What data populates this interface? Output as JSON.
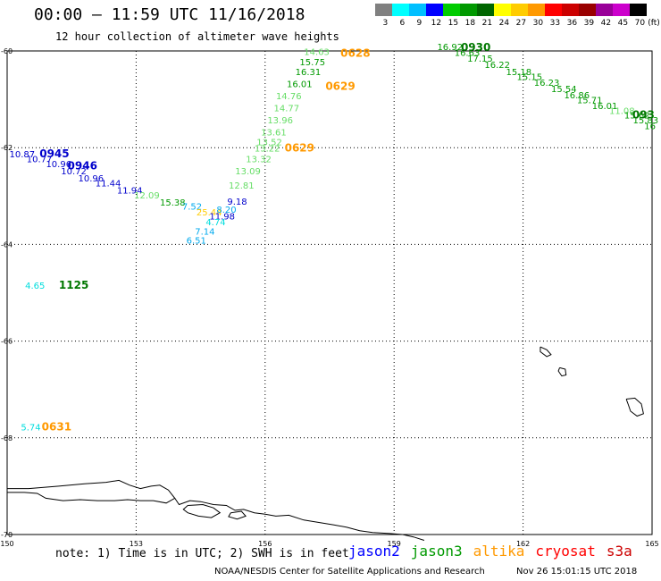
{
  "title": "00:00 – 11:59 UTC 11/16/2018",
  "subtitle": "12 hour collection of altimeter wave heights",
  "scale": {
    "unit": "(ft)",
    "colors": [
      "#808080",
      "#00ffff",
      "#00bfff",
      "#0000ff",
      "#00cc00",
      "#009900",
      "#006600",
      "#ffff00",
      "#ffcc00",
      "#ff9900",
      "#ff0000",
      "#cc0000",
      "#990000",
      "#990099",
      "#cc00cc",
      "#000000"
    ],
    "labels": [
      "3",
      "6",
      "9",
      "12",
      "15",
      "18",
      "21",
      "24",
      "27",
      "30",
      "33",
      "36",
      "39",
      "42",
      "45",
      "70"
    ]
  },
  "map": {
    "lon_range": [
      150,
      165
    ],
    "lat_range": [
      -70,
      -60
    ],
    "lon_ticks": [
      "150",
      "153",
      "156",
      "159",
      "162",
      "165"
    ],
    "lat_ticks": [
      "-60",
      "-62",
      "-64",
      "-66",
      "-68",
      "-70"
    ],
    "grid": true
  },
  "observations": [
    {
      "lon": 150.35,
      "lat": -62.2,
      "v": "10.87",
      "c": "#0000cc"
    },
    {
      "lon": 150.75,
      "lat": -62.3,
      "v": "10.77",
      "c": "#0000cc"
    },
    {
      "lon": 151.2,
      "lat": -62.4,
      "v": "10.96",
      "c": "#0000cc"
    },
    {
      "lon": 151.55,
      "lat": -62.55,
      "v": "10.72",
      "c": "#0000cc"
    },
    {
      "lon": 151.95,
      "lat": -62.7,
      "v": "10.96",
      "c": "#0000cc"
    },
    {
      "lon": 152.35,
      "lat": -62.8,
      "v": "11.44",
      "c": "#0000cc"
    },
    {
      "lon": 152.85,
      "lat": -62.95,
      "v": "11.94",
      "c": "#0000cc"
    },
    {
      "lon": 153.25,
      "lat": -63.05,
      "v": "12.09",
      "c": "#66dd66"
    },
    {
      "lon": 153.85,
      "lat": -63.2,
      "v": "15.38",
      "c": "#009900"
    },
    {
      "lon": 154.3,
      "lat": -63.28,
      "v": "7.52",
      "c": "#00aaee"
    },
    {
      "lon": 154.7,
      "lat": -63.4,
      "v": "25.44",
      "c": "#ffcc00"
    },
    {
      "lon": 155.1,
      "lat": -63.35,
      "v": "8.20",
      "c": "#00aaee"
    },
    {
      "lon": 155.35,
      "lat": -63.18,
      "v": "9.18",
      "c": "#0000cc"
    },
    {
      "lon": 155.0,
      "lat": -63.48,
      "v": "11.98",
      "c": "#0000cc"
    },
    {
      "lon": 154.85,
      "lat": -63.6,
      "v": "4.74",
      "c": "#00dddd"
    },
    {
      "lon": 154.6,
      "lat": -63.8,
      "v": "7.14",
      "c": "#00aaee"
    },
    {
      "lon": 154.4,
      "lat": -63.98,
      "v": "6.51",
      "c": "#00aaee"
    },
    {
      "lon": 155.45,
      "lat": -62.85,
      "v": "12.81",
      "c": "#66dd66"
    },
    {
      "lon": 155.6,
      "lat": -62.55,
      "v": "13.09",
      "c": "#66dd66"
    },
    {
      "lon": 155.85,
      "lat": -62.3,
      "v": "13.32",
      "c": "#66dd66"
    },
    {
      "lon": 156.05,
      "lat": -62.08,
      "v": "13.22",
      "c": "#66dd66"
    },
    {
      "lon": 156.1,
      "lat": -61.95,
      "v": "13.52",
      "c": "#66dd66"
    },
    {
      "lon": 156.2,
      "lat": -61.75,
      "v": "13.61",
      "c": "#66dd66"
    },
    {
      "lon": 156.35,
      "lat": -61.5,
      "v": "13.96",
      "c": "#66dd66"
    },
    {
      "lon": 156.5,
      "lat": -61.25,
      "v": "14.77",
      "c": "#66dd66"
    },
    {
      "lon": 156.55,
      "lat": -61.0,
      "v": "14.76",
      "c": "#66dd66"
    },
    {
      "lon": 156.8,
      "lat": -60.75,
      "v": "16.01",
      "c": "#009900"
    },
    {
      "lon": 157.0,
      "lat": -60.5,
      "v": "16.31",
      "c": "#009900"
    },
    {
      "lon": 157.1,
      "lat": -60.3,
      "v": "15.75",
      "c": "#009900"
    },
    {
      "lon": 157.2,
      "lat": -60.08,
      "v": "14.63",
      "c": "#66dd66"
    },
    {
      "lon": 160.3,
      "lat": -59.98,
      "v": "16.92",
      "c": "#009900"
    },
    {
      "lon": 160.7,
      "lat": -60.1,
      "v": "16.63",
      "c": "#009900"
    },
    {
      "lon": 161.0,
      "lat": -60.22,
      "v": "17.15",
      "c": "#009900"
    },
    {
      "lon": 161.4,
      "lat": -60.35,
      "v": "16.22",
      "c": "#009900"
    },
    {
      "lon": 161.9,
      "lat": -60.5,
      "v": "15.18",
      "c": "#009900"
    },
    {
      "lon": 162.15,
      "lat": -60.6,
      "v": "15.15",
      "c": "#009900"
    },
    {
      "lon": 162.55,
      "lat": -60.72,
      "v": "16.23",
      "c": "#009900"
    },
    {
      "lon": 162.95,
      "lat": -60.85,
      "v": "15.54",
      "c": "#009900"
    },
    {
      "lon": 163.25,
      "lat": -60.98,
      "v": "16.86",
      "c": "#009900"
    },
    {
      "lon": 163.55,
      "lat": -61.08,
      "v": "15.71",
      "c": "#009900"
    },
    {
      "lon": 163.9,
      "lat": -61.2,
      "v": "16.01",
      "c": "#009900"
    },
    {
      "lon": 164.3,
      "lat": -61.3,
      "v": "11.08",
      "c": "#66dd66"
    },
    {
      "lon": 164.65,
      "lat": -61.4,
      "v": "15.62",
      "c": "#009900"
    },
    {
      "lon": 164.85,
      "lat": -61.5,
      "v": "15.83",
      "c": "#009900"
    },
    {
      "lon": 164.95,
      "lat": -61.62,
      "v": "16",
      "c": "#009900"
    },
    {
      "lon": 150.65,
      "lat": -64.92,
      "v": "4.65",
      "c": "#00dddd"
    },
    {
      "lon": 150.55,
      "lat": -67.85,
      "v": "5.74",
      "c": "#00dddd"
    }
  ],
  "time_labels": [
    {
      "lon": 151.1,
      "lat": -62.2,
      "t": "0945",
      "c": "#0000cc"
    },
    {
      "lon": 151.75,
      "lat": -62.45,
      "t": "0946",
      "c": "#0000cc"
    },
    {
      "lon": 158.1,
      "lat": -60.12,
      "t": "0628",
      "c": "#ff9900"
    },
    {
      "lon": 157.75,
      "lat": -60.8,
      "t": "0629",
      "c": "#ff9900"
    },
    {
      "lon": 156.8,
      "lat": -62.08,
      "t": "0629",
      "c": "#ff9900"
    },
    {
      "lon": 160.9,
      "lat": -60.0,
      "t": "0930",
      "c": "#007700"
    },
    {
      "lon": 164.8,
      "lat": -61.4,
      "t": "093",
      "c": "#007700"
    },
    {
      "lon": 151.55,
      "lat": -64.92,
      "t": "1125",
      "c": "#007700"
    },
    {
      "lon": 151.15,
      "lat": -67.85,
      "t": "0631",
      "c": "#ff9900"
    }
  ],
  "coastline": [
    [
      [
        150.0,
        -69.05
      ],
      [
        150.5,
        -69.05
      ],
      [
        151.2,
        -69.0
      ],
      [
        151.8,
        -68.95
      ],
      [
        152.3,
        -68.92
      ],
      [
        152.6,
        -68.88
      ],
      [
        152.85,
        -68.98
      ],
      [
        153.1,
        -69.05
      ],
      [
        153.35,
        -69.0
      ],
      [
        153.55,
        -68.98
      ],
      [
        153.75,
        -69.08
      ],
      [
        153.9,
        -69.25
      ],
      [
        153.7,
        -69.35
      ],
      [
        153.4,
        -69.3
      ],
      [
        153.1,
        -69.3
      ],
      [
        152.8,
        -69.28
      ],
      [
        152.5,
        -69.3
      ],
      [
        152.1,
        -69.3
      ],
      [
        151.7,
        -69.28
      ],
      [
        151.3,
        -69.3
      ],
      [
        150.9,
        -69.25
      ],
      [
        150.7,
        -69.15
      ],
      [
        150.4,
        -69.13
      ],
      [
        150.0,
        -69.13
      ]
    ],
    [
      [
        153.9,
        -69.25
      ],
      [
        154.0,
        -69.38
      ],
      [
        154.25,
        -69.3
      ],
      [
        154.5,
        -69.32
      ],
      [
        154.8,
        -69.38
      ],
      [
        155.1,
        -69.4
      ],
      [
        155.3,
        -69.5
      ],
      [
        155.5,
        -69.48
      ],
      [
        155.75,
        -69.55
      ],
      [
        156.0,
        -69.58
      ],
      [
        156.25,
        -69.62
      ],
      [
        156.55,
        -69.6
      ],
      [
        156.9,
        -69.7
      ],
      [
        157.25,
        -69.75
      ],
      [
        157.6,
        -69.8
      ],
      [
        157.9,
        -69.85
      ],
      [
        158.2,
        -69.92
      ],
      [
        158.5,
        -69.96
      ],
      [
        158.9,
        -69.98
      ],
      [
        159.2,
        -70.0
      ],
      [
        159.45,
        -70.05
      ],
      [
        159.7,
        -70.12
      ]
    ],
    [
      [
        154.2,
        -69.4
      ],
      [
        154.55,
        -69.38
      ],
      [
        154.8,
        -69.45
      ],
      [
        154.95,
        -69.55
      ],
      [
        154.75,
        -69.65
      ],
      [
        154.45,
        -69.62
      ],
      [
        154.2,
        -69.55
      ],
      [
        154.1,
        -69.48
      ],
      [
        154.2,
        -69.4
      ]
    ],
    [
      [
        155.2,
        -69.55
      ],
      [
        155.45,
        -69.52
      ],
      [
        155.55,
        -69.62
      ],
      [
        155.35,
        -69.68
      ],
      [
        155.15,
        -69.63
      ],
      [
        155.2,
        -69.55
      ]
    ],
    [
      [
        162.4,
        -66.12
      ],
      [
        162.55,
        -66.18
      ],
      [
        162.65,
        -66.28
      ],
      [
        162.55,
        -66.32
      ],
      [
        162.4,
        -66.22
      ],
      [
        162.4,
        -66.12
      ]
    ],
    [
      [
        162.85,
        -66.55
      ],
      [
        162.98,
        -66.58
      ],
      [
        163.0,
        -66.7
      ],
      [
        162.9,
        -66.72
      ],
      [
        162.82,
        -66.62
      ],
      [
        162.85,
        -66.55
      ]
    ],
    [
      [
        164.4,
        -67.2
      ],
      [
        164.6,
        -67.18
      ],
      [
        164.75,
        -67.3
      ],
      [
        164.8,
        -67.5
      ],
      [
        164.65,
        -67.55
      ],
      [
        164.5,
        -67.45
      ],
      [
        164.45,
        -67.32
      ],
      [
        164.4,
        -67.2
      ]
    ]
  ],
  "note": "note: 1) Time is in UTC; 2) SWH is in feet",
  "satellites": [
    {
      "name": "jason2",
      "color": "#0000ff"
    },
    {
      "name": "jason3",
      "color": "#009900"
    },
    {
      "name": "altika",
      "color": "#ff9900"
    },
    {
      "name": "cryosat",
      "color": "#ff0000"
    },
    {
      "name": "s3a",
      "color": "#cc0000"
    }
  ],
  "footer": {
    "credit": "NOAA/NESDIS Center for Satellite Applications and Research",
    "timestamp": "Nov 26 15:01:15 UTC 2018"
  }
}
